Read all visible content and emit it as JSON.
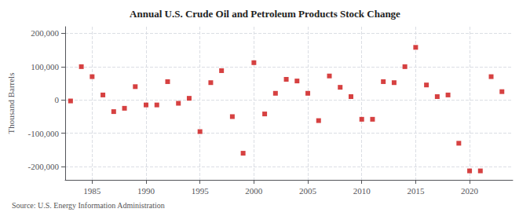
{
  "chart_data": {
    "type": "scatter",
    "title": "Annual U.S. Crude Oil and Petroleum Products Stock Change",
    "ylabel": "Thousand Barrels",
    "source": "Source: U.S. Energy Information Administration",
    "x": [
      1983,
      1984,
      1985,
      1986,
      1987,
      1988,
      1989,
      1990,
      1991,
      1992,
      1993,
      1994,
      1995,
      1996,
      1997,
      1998,
      1999,
      2000,
      2001,
      2002,
      2003,
      2004,
      2005,
      2006,
      2007,
      2008,
      2009,
      2010,
      2011,
      2012,
      2013,
      2014,
      2015,
      2016,
      2017,
      2018,
      2019,
      2020,
      2021,
      2022,
      2023
    ],
    "values": [
      -3000,
      100000,
      70000,
      15000,
      -35000,
      -25000,
      40000,
      -15000,
      -15000,
      55000,
      -10000,
      5000,
      -95000,
      52000,
      88000,
      -50000,
      -160000,
      112000,
      -42000,
      20000,
      62000,
      57000,
      20000,
      -62000,
      72000,
      38000,
      10000,
      -58000,
      -58000,
      55000,
      52000,
      100000,
      158000,
      45000,
      10000,
      15000,
      -130000,
      -213000,
      -213000,
      70000,
      25000
    ],
    "color": "#cc1111",
    "marker": "square",
    "xlim": [
      1982.5,
      2024
    ],
    "xticks": [
      1985,
      1990,
      1995,
      2000,
      2005,
      2010,
      2015,
      2020
    ],
    "ylim": [
      -240000,
      220000
    ],
    "yticks": [
      {
        "value": -200000,
        "label": "-200,000"
      },
      {
        "value": -100000,
        "label": "-100,000"
      },
      0,
      {
        "value": 100000,
        "label": "100,000"
      },
      {
        "value": 200000,
        "label": "200,000"
      }
    ],
    "grid": true
  }
}
